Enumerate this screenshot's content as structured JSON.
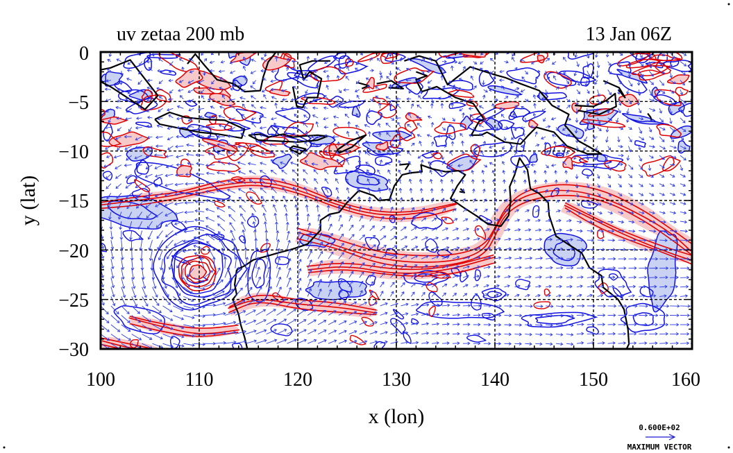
{
  "plot": {
    "title_left": "uv zetaa 200 mb",
    "title_right": "13 Jan 06Z",
    "xlabel": "x (lon)",
    "ylabel": "y (lat)",
    "x_ticks": [
      "100",
      "110",
      "120",
      "130",
      "140",
      "150",
      "160"
    ],
    "y_ticks": [
      "0",
      "−5",
      "−10",
      "−15",
      "−20",
      "−25",
      "−30"
    ],
    "vector_legend_value": "0.600E+02",
    "vector_legend_caption": "MAXIMUM VECTOR"
  },
  "chart_data": {
    "type": "contour-vector-map",
    "title": "uv zetaa 200 mb",
    "valid_time": "13 Jan 06Z",
    "xlabel": "x (lon)",
    "ylabel": "y (lat)",
    "xlim": [
      100,
      160
    ],
    "ylim": [
      -30,
      0
    ],
    "x_ticks": [
      100,
      110,
      120,
      130,
      140,
      150,
      160
    ],
    "y_ticks": [
      0,
      -5,
      -10,
      -15,
      -20,
      -25,
      -30
    ],
    "grid": true,
    "max_vector": 60.0,
    "colors": {
      "positive_contour": "#e00000",
      "positive_fill": "#f7c9c9",
      "negative_contour": "#1010e0",
      "negative_fill": "#c9d2f2",
      "coastline": "#000000",
      "vector": "#2a3ae8"
    }
  }
}
